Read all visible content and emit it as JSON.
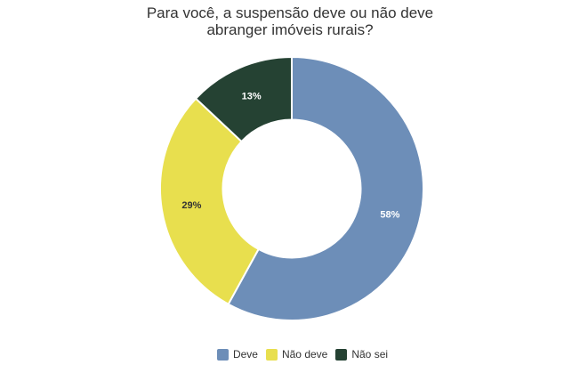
{
  "chart_data": {
    "type": "pie",
    "subtype": "donut",
    "title": "Para você, a suspensão deve ou não deve abranger imóveis rurais?",
    "title_lines": [
      "Para você, a suspensão deve ou não deve",
      "abranger imóveis rurais?"
    ],
    "unit": "%",
    "start_angle_deg": 0,
    "direction": "clockwise",
    "legend_position": "bottom",
    "grid": false,
    "slices": [
      {
        "label": "Deve",
        "value": 58,
        "display": "58%",
        "color": "#6d8eb8",
        "label_color": "#ffffff"
      },
      {
        "label": "Não deve",
        "value": 29,
        "display": "29%",
        "color": "#e8df4e",
        "label_color": "#333333"
      },
      {
        "label": "Não sei",
        "value": 13,
        "display": "13%",
        "color": "#254233",
        "label_color": "#ffffff"
      }
    ],
    "colors": {
      "title_text": "#333333",
      "legend_text": "#333333",
      "background": "#ffffff",
      "slice_border": "#ffffff"
    }
  }
}
